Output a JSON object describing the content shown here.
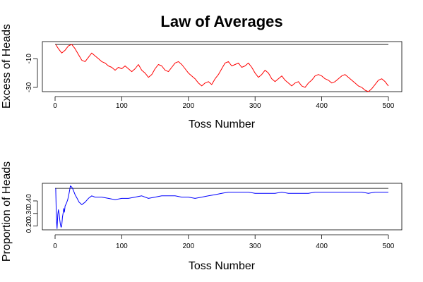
{
  "figure_title": "Law of Averages",
  "chart_data": [
    {
      "type": "line",
      "xlabel": "Toss Number",
      "ylabel": "Excess of Heads",
      "xlim": [
        0,
        500
      ],
      "ylim": [
        -33,
        2
      ],
      "xticks": [
        "0",
        "100",
        "200",
        "300",
        "400",
        "500"
      ],
      "yticks": [
        "-30",
        "-10"
      ],
      "reference_line": 0,
      "series": [
        {
          "color": "#ff0000",
          "x": [
            1,
            5,
            10,
            15,
            20,
            25,
            30,
            35,
            40,
            45,
            50,
            55,
            60,
            65,
            70,
            75,
            80,
            85,
            90,
            95,
            100,
            105,
            110,
            115,
            120,
            125,
            130,
            135,
            140,
            145,
            150,
            155,
            160,
            165,
            170,
            175,
            180,
            185,
            190,
            195,
            200,
            205,
            210,
            215,
            220,
            225,
            230,
            235,
            240,
            245,
            250,
            255,
            260,
            265,
            270,
            275,
            280,
            285,
            290,
            295,
            300,
            305,
            310,
            315,
            320,
            325,
            330,
            335,
            340,
            345,
            350,
            355,
            360,
            365,
            370,
            375,
            380,
            385,
            390,
            395,
            400,
            405,
            410,
            415,
            420,
            425,
            430,
            435,
            440,
            445,
            450,
            455,
            460,
            465,
            470,
            475,
            480,
            485,
            490,
            495,
            500
          ],
          "y": [
            0,
            -3,
            -6,
            -4,
            -1,
            0,
            -3,
            -7,
            -11,
            -12,
            -9,
            -6,
            -8,
            -10,
            -12,
            -13,
            -15,
            -16,
            -18,
            -16,
            -17,
            -15,
            -17,
            -19,
            -17,
            -14,
            -18,
            -20,
            -23,
            -21,
            -17,
            -14,
            -15,
            -18,
            -19,
            -16,
            -13,
            -12,
            -14,
            -17,
            -20,
            -22,
            -24,
            -27,
            -29,
            -27,
            -26,
            -28,
            -24,
            -21,
            -17,
            -13,
            -12,
            -15,
            -14,
            -13,
            -16,
            -15,
            -13,
            -16,
            -20,
            -23,
            -21,
            -18,
            -20,
            -24,
            -26,
            -24,
            -22,
            -25,
            -27,
            -29,
            -27,
            -26,
            -29,
            -30,
            -27,
            -25,
            -22,
            -21,
            -22,
            -24,
            -25,
            -27,
            -26,
            -24,
            -22,
            -21,
            -23,
            -25,
            -27,
            -29,
            -30,
            -32,
            -33,
            -31,
            -28,
            -25,
            -24,
            -26,
            -29
          ]
        }
      ]
    },
    {
      "type": "line",
      "xlabel": "Toss Number",
      "ylabel": "Proportion of Heads",
      "xlim": [
        0,
        500
      ],
      "ylim": [
        0.17,
        0.54
      ],
      "xticks": [
        "0",
        "100",
        "200",
        "300",
        "400",
        "500"
      ],
      "yticks": [
        "0.20",
        "0.30",
        "0.40"
      ],
      "reference_line": 0.5,
      "series": [
        {
          "color": "#0000ff",
          "x": [
            1,
            2,
            3,
            4,
            5,
            6,
            7,
            8,
            9,
            10,
            11,
            12,
            13,
            14,
            15,
            17,
            19,
            21,
            23,
            25,
            27,
            30,
            33,
            36,
            40,
            45,
            50,
            55,
            60,
            70,
            80,
            90,
            100,
            110,
            120,
            130,
            140,
            150,
            160,
            170,
            180,
            190,
            200,
            210,
            220,
            230,
            240,
            250,
            260,
            270,
            280,
            290,
            300,
            310,
            320,
            330,
            340,
            350,
            360,
            370,
            380,
            390,
            400,
            410,
            420,
            430,
            440,
            450,
            460,
            470,
            480,
            490,
            500
          ],
          "y": [
            0.5,
            0.25,
            0.18,
            0.29,
            0.33,
            0.3,
            0.25,
            0.21,
            0.19,
            0.2,
            0.27,
            0.3,
            0.34,
            0.31,
            0.36,
            0.38,
            0.41,
            0.46,
            0.52,
            0.51,
            0.49,
            0.45,
            0.42,
            0.39,
            0.37,
            0.39,
            0.42,
            0.44,
            0.43,
            0.43,
            0.42,
            0.41,
            0.42,
            0.42,
            0.43,
            0.44,
            0.42,
            0.43,
            0.44,
            0.44,
            0.44,
            0.43,
            0.43,
            0.42,
            0.43,
            0.44,
            0.45,
            0.46,
            0.47,
            0.47,
            0.47,
            0.47,
            0.46,
            0.46,
            0.46,
            0.46,
            0.47,
            0.46,
            0.46,
            0.46,
            0.46,
            0.47,
            0.47,
            0.47,
            0.47,
            0.47,
            0.47,
            0.47,
            0.47,
            0.46,
            0.47,
            0.47,
            0.47
          ]
        }
      ]
    }
  ]
}
